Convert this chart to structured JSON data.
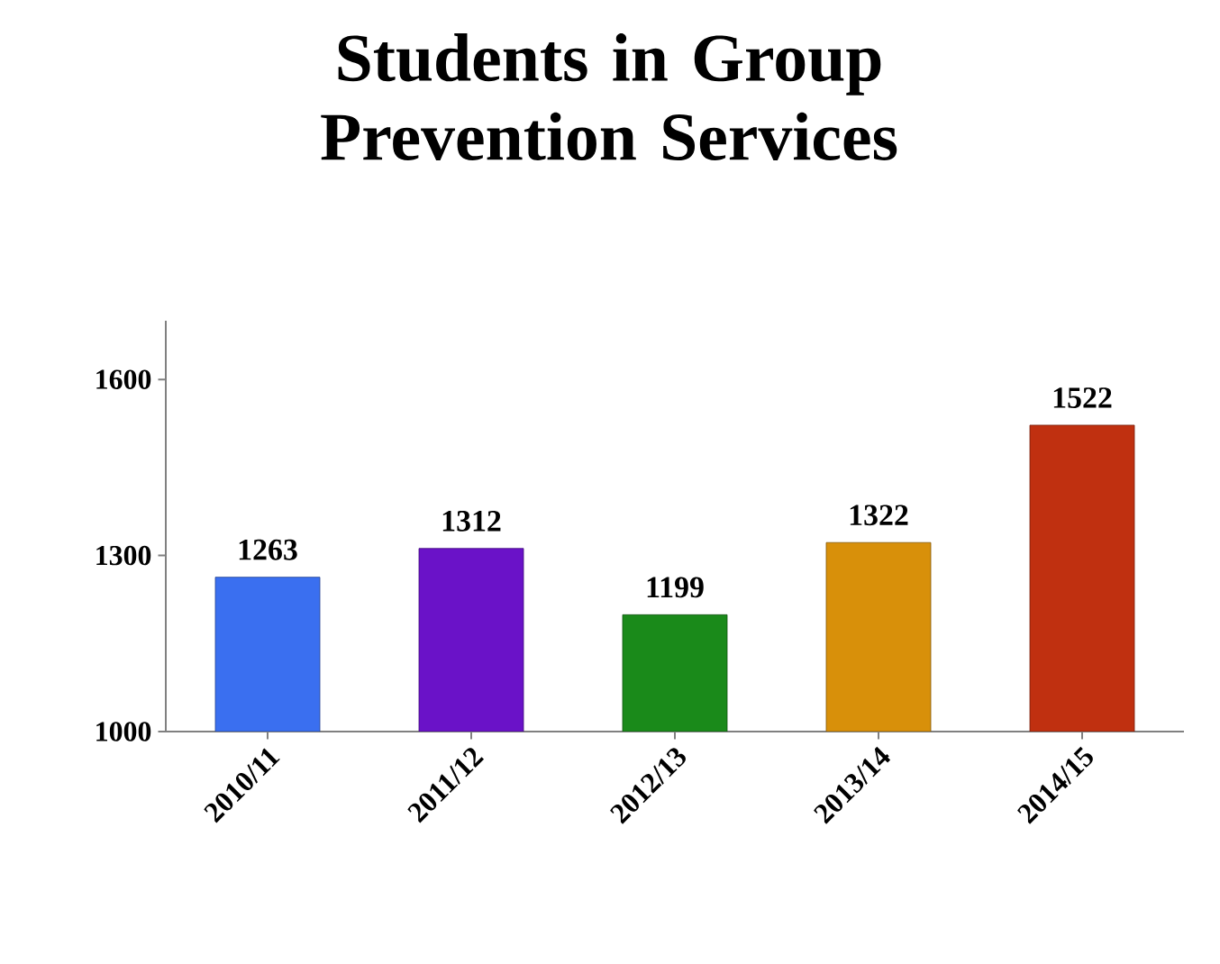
{
  "chart_data": {
    "type": "bar",
    "title": "Students in Group\nPrevention Services",
    "categories": [
      "2010/11",
      "2011/12",
      "2012/13",
      "2013/14",
      "2014/15"
    ],
    "values": [
      1263,
      1312,
      1199,
      1322,
      1522
    ],
    "colors": [
      "#3a6ff0",
      "#6a12c8",
      "#1a8a1a",
      "#d8900a",
      "#c03010"
    ],
    "ylim": [
      1000,
      1700
    ],
    "yticks": [
      1000,
      1300,
      1600
    ],
    "data_labels": true
  }
}
